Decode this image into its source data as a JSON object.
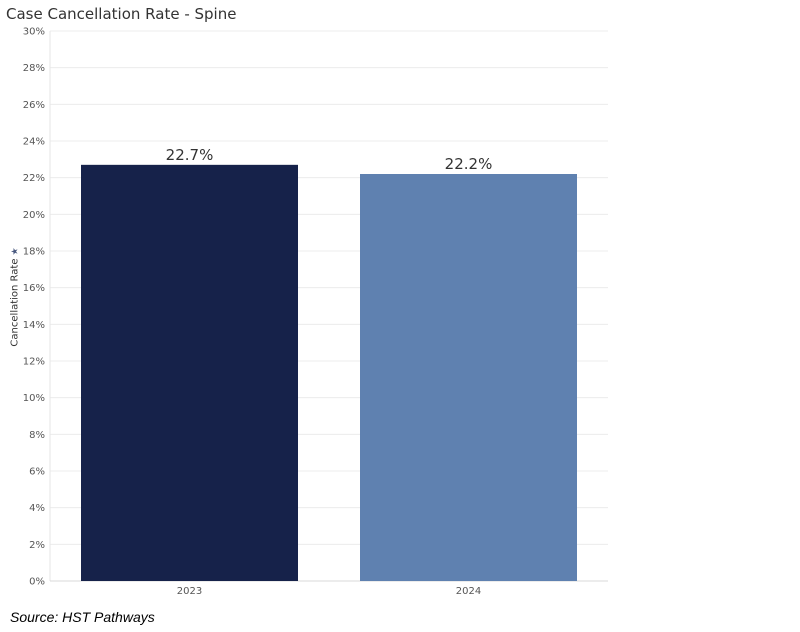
{
  "chart_data": {
    "type": "bar",
    "title": "Case Cancellation Rate - Spine",
    "xlabel": "",
    "ylabel": "Cancellation Rate",
    "ylabel_icon": "star-icon",
    "categories": [
      "2023",
      "2024"
    ],
    "values": [
      22.7,
      22.2
    ],
    "data_labels": [
      "22.7%",
      "22.2%"
    ],
    "colors": [
      "#16224a",
      "#5f81b0"
    ],
    "ylim": [
      0,
      30
    ],
    "ytick_values": [
      0,
      2,
      4,
      6,
      8,
      10,
      12,
      14,
      16,
      18,
      20,
      22,
      24,
      26,
      28,
      30
    ],
    "ytick_labels": [
      "0%",
      "2%",
      "4%",
      "6%",
      "8%",
      "10%",
      "12%",
      "14%",
      "16%",
      "18%",
      "20%",
      "22%",
      "24%",
      "26%",
      "28%",
      "30%"
    ],
    "grid": true
  },
  "footer": {
    "source": "Source: HST Pathways"
  }
}
